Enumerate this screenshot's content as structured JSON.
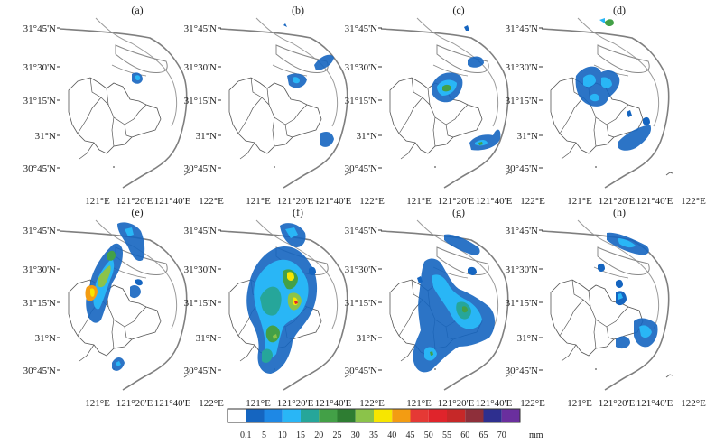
{
  "panels": [
    {
      "label": "(a)"
    },
    {
      "label": "(b)"
    },
    {
      "label": "(c)"
    },
    {
      "label": "(d)"
    },
    {
      "label": "(e)"
    },
    {
      "label": "(f)"
    },
    {
      "label": "(g)"
    },
    {
      "label": "(h)"
    }
  ],
  "lat_labels": [
    "31°45'N",
    "31°30'N",
    "31°15'N",
    "31°N",
    "30°45'N"
  ],
  "lon_labels": [
    "121°E",
    "121°20'E",
    "121°40'E",
    "122°E"
  ],
  "legend": {
    "ticks": [
      "0.1",
      "5",
      "10",
      "15",
      "20",
      "25",
      "30",
      "35",
      "40",
      "45",
      "50",
      "55",
      "60",
      "65",
      "70"
    ],
    "unit": "mm",
    "colors": [
      "#ffffff",
      "#1565c0",
      "#1e88e5",
      "#29b6f6",
      "#26a69a",
      "#43a047",
      "#2e7d32",
      "#8bc34a",
      "#f7e600",
      "#f39c12",
      "#e53935",
      "#e0242b",
      "#c62828",
      "#8e2f3a",
      "#2e2f8f",
      "#6a2f9e"
    ]
  }
}
